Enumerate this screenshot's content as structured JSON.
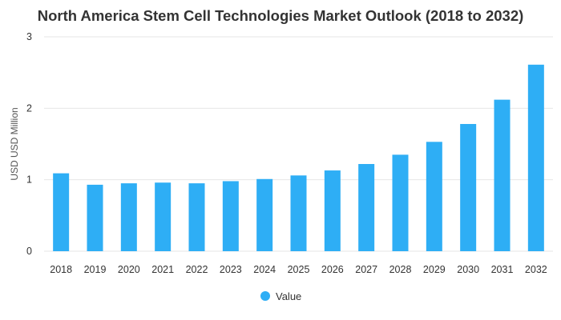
{
  "chart_data": {
    "type": "bar",
    "title": "North America Stem Cell Technologies Market Outlook (2018 to 2032)",
    "xlabel": "",
    "ylabel": "USD USD Million",
    "ylim": [
      0,
      3
    ],
    "yticks": [
      "0",
      "1",
      "2",
      "3"
    ],
    "grid": true,
    "legend_position": "bottom-center",
    "categories": [
      "2018",
      "2019",
      "2020",
      "2021",
      "2022",
      "2023",
      "2024",
      "2025",
      "2026",
      "2027",
      "2028",
      "2029",
      "2030",
      "2031",
      "2032"
    ],
    "series": [
      {
        "name": "Value",
        "color": "#2eaef5",
        "values": [
          1.09,
          0.93,
          0.95,
          0.96,
          0.95,
          0.98,
          1.01,
          1.06,
          1.13,
          1.22,
          1.35,
          1.53,
          1.78,
          2.12,
          2.61
        ]
      }
    ]
  }
}
